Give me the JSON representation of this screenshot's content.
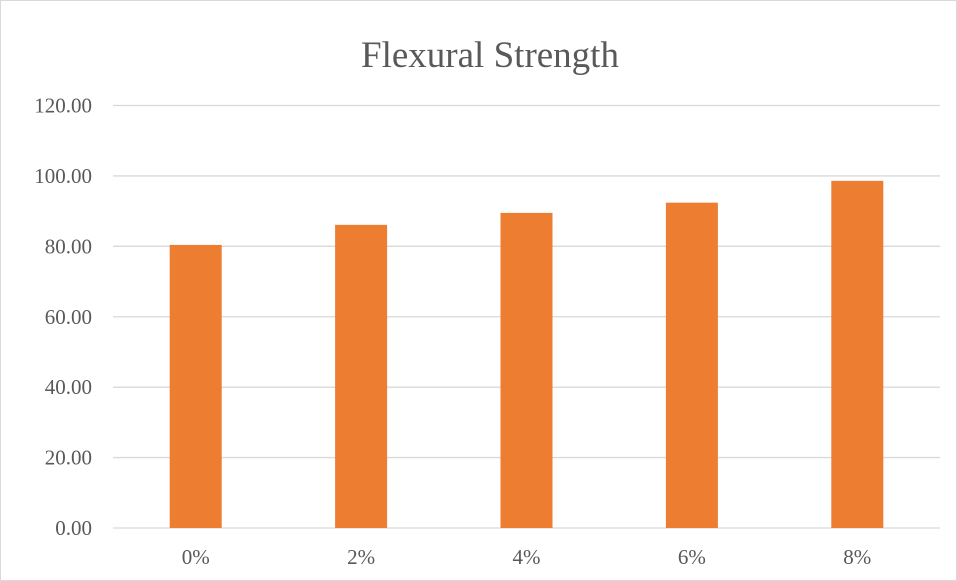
{
  "chart_data": {
    "type": "bar",
    "title": "Flexural Strength",
    "xlabel": "",
    "ylabel": "",
    "categories": [
      "0%",
      "2%",
      "4%",
      "6%",
      "8%"
    ],
    "series": [
      {
        "values": [
          80.4,
          86.1,
          89.5,
          92.4,
          98.6
        ],
        "color": "#ED7D31"
      }
    ],
    "ylim": [
      0,
      120
    ],
    "ytick_labels": [
      "0.00",
      "20.00",
      "40.00",
      "60.00",
      "80.00",
      "100.00",
      "120.00"
    ],
    "grid": true,
    "legend": "none"
  }
}
